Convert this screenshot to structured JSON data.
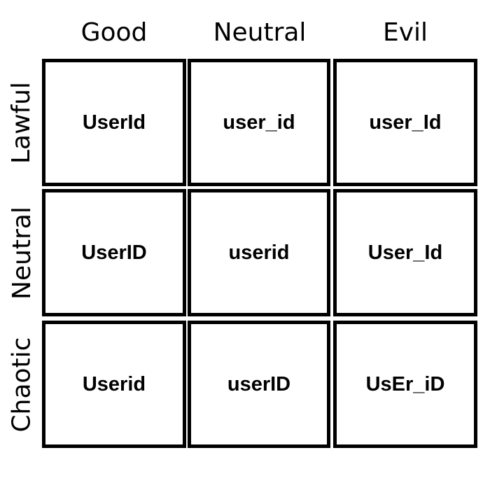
{
  "columns": [
    "Good",
    "Neutral",
    "Evil"
  ],
  "rows": [
    "Lawful",
    "Neutral",
    "Chaotic"
  ],
  "cells": [
    [
      "UserId",
      "user_id",
      "user_Id"
    ],
    [
      "UserID",
      "userid",
      "User_Id"
    ],
    [
      "Userid",
      "userID",
      "UsEr_iD"
    ]
  ]
}
